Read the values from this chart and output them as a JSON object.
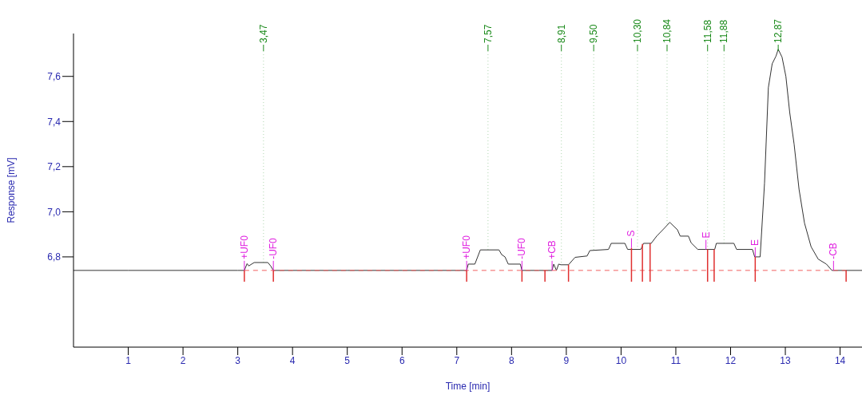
{
  "chart_data": {
    "type": "line",
    "xlabel": "Time [min]",
    "ylabel": "Response [mV]",
    "xlim": [
      0,
      14.4
    ],
    "ylim": [
      6.4,
      7.79
    ],
    "xticks": [
      1,
      2,
      3,
      4,
      5,
      6,
      7,
      8,
      9,
      10,
      11,
      12,
      13,
      14
    ],
    "yticks": [
      {
        "value": 6.8,
        "label": "6,8"
      },
      {
        "value": 7.0,
        "label": "7,0"
      },
      {
        "value": 7.2,
        "label": "7,2"
      },
      {
        "value": 7.4,
        "label": "7,4"
      },
      {
        "value": 7.6,
        "label": "7,6"
      }
    ],
    "series": [
      {
        "type": "line",
        "color": "#333333",
        "marker": "none",
        "line_style": "solid",
        "x": [
          0,
          1,
          2,
          3,
          3.12,
          3.17,
          3.2,
          3.3,
          3.55,
          3.6,
          3.65,
          4,
          5,
          6,
          7,
          7.18,
          7.21,
          7.33,
          7.43,
          7.77,
          7.82,
          7.88,
          7.94,
          8.16,
          8.19,
          8.5,
          8.74,
          8.77,
          8.82,
          8.86,
          8.9,
          9.04,
          9.16,
          9.38,
          9.43,
          9.77,
          9.82,
          10.07,
          10.12,
          10.36,
          10.41,
          10.55,
          10.65,
          10.79,
          10.89,
          11.03,
          11.08,
          11.23,
          11.28,
          11.4,
          11.71,
          11.74,
          12.06,
          12.11,
          12.4,
          12.44,
          12.54,
          12.62,
          12.69,
          12.76,
          12.83,
          12.87,
          12.94,
          13.01,
          13.08,
          13.16,
          13.25,
          13.35,
          13.47,
          13.6,
          13.75,
          13.85,
          14.1,
          14.4
        ],
        "values": [
          6.74,
          6.74,
          6.74,
          6.74,
          6.74,
          6.77,
          6.76,
          6.775,
          6.775,
          6.76,
          6.74,
          6.74,
          6.74,
          6.74,
          6.74,
          6.74,
          6.768,
          6.768,
          6.831,
          6.831,
          6.81,
          6.8,
          6.768,
          6.768,
          6.74,
          6.74,
          6.74,
          6.768,
          6.74,
          6.768,
          6.765,
          6.765,
          6.798,
          6.804,
          6.828,
          6.833,
          6.86,
          6.86,
          6.833,
          6.833,
          6.86,
          6.86,
          6.892,
          6.927,
          6.953,
          6.92,
          6.892,
          6.892,
          6.862,
          6.833,
          6.833,
          6.86,
          6.86,
          6.833,
          6.833,
          6.8,
          6.8,
          7.127,
          7.55,
          7.656,
          7.69,
          7.72,
          7.685,
          7.6,
          7.44,
          7.3,
          7.1,
          6.95,
          6.845,
          6.79,
          6.768,
          6.74,
          6.74,
          6.74
        ]
      },
      {
        "type": "line",
        "color": "#f06060",
        "marker": "none",
        "line_style": "dashed",
        "x": [
          3.12,
          14.11
        ],
        "values": [
          6.74,
          6.74
        ]
      },
      {
        "color": "#e03030",
        "x": [
          3.12,
          3.12
        ],
        "values": [
          6.69,
          6.74
        ]
      },
      {
        "color": "#e03030",
        "x": [
          3.65,
          3.65
        ],
        "values": [
          6.69,
          6.74
        ]
      },
      {
        "color": "#e03030",
        "x": [
          7.18,
          7.18
        ],
        "values": [
          6.69,
          6.74
        ]
      },
      {
        "color": "#e03030",
        "x": [
          8.19,
          8.19
        ],
        "values": [
          6.69,
          6.74
        ]
      },
      {
        "color": "#e03030",
        "x": [
          8.61,
          8.61
        ],
        "values": [
          6.69,
          6.74
        ]
      },
      {
        "color": "#e03030",
        "x": [
          9.04,
          9.04
        ],
        "values": [
          6.69,
          6.765
        ]
      },
      {
        "color": "#e03030",
        "x": [
          10.19,
          10.19
        ],
        "values": [
          6.69,
          6.84
        ]
      },
      {
        "color": "#e03030",
        "x": [
          10.39,
          10.39
        ],
        "values": [
          6.69,
          6.857
        ]
      },
      {
        "color": "#e03030",
        "x": [
          10.53,
          10.53
        ],
        "values": [
          6.69,
          6.86
        ]
      },
      {
        "color": "#e03030",
        "x": [
          11.58,
          11.58
        ],
        "values": [
          6.69,
          6.833
        ]
      },
      {
        "color": "#e03030",
        "x": [
          11.7,
          11.7
        ],
        "values": [
          6.69,
          6.833
        ]
      },
      {
        "color": "#e03030",
        "x": [
          12.45,
          12.45
        ],
        "values": [
          6.69,
          6.8
        ]
      },
      {
        "color": "#e03030",
        "x": [
          14.11,
          14.11
        ],
        "values": [
          6.69,
          6.74
        ]
      }
    ],
    "annotations": [
      {
        "text": "3,47",
        "x": 3.47,
        "y": 6.775
      },
      {
        "text": "7,57",
        "x": 7.57,
        "y": 6.831
      },
      {
        "text": "8,91",
        "x": 8.91,
        "y": 6.768
      },
      {
        "text": "9,50",
        "x": 9.5,
        "y": 6.828
      },
      {
        "text": "10,30",
        "x": 10.3,
        "y": 6.833
      },
      {
        "text": "10,84",
        "x": 10.84,
        "y": 6.94
      },
      {
        "text": "11,58",
        "x": 11.58,
        "y": 6.833
      },
      {
        "text": "11,88",
        "x": 11.88,
        "y": 6.86
      },
      {
        "text": "12,87",
        "x": 12.87,
        "y": 7.72
      },
      {
        "text": "+UF0",
        "x": 3.12,
        "y": 6.74
      },
      {
        "text": "-UF0",
        "x": 3.65,
        "y": 6.74
      },
      {
        "text": "+UF0",
        "x": 7.18,
        "y": 6.74
      },
      {
        "text": "-UF0",
        "x": 8.19,
        "y": 6.74
      },
      {
        "text": "+CB",
        "x": 8.74,
        "y": 6.74
      },
      {
        "text": "S",
        "x": 10.19,
        "y": 6.84
      },
      {
        "text": "E",
        "x": 11.55,
        "y": 6.833
      },
      {
        "text": "E",
        "x": 12.45,
        "y": 6.8
      },
      {
        "text": "-CB",
        "x": 13.88,
        "y": 6.74
      }
    ]
  }
}
